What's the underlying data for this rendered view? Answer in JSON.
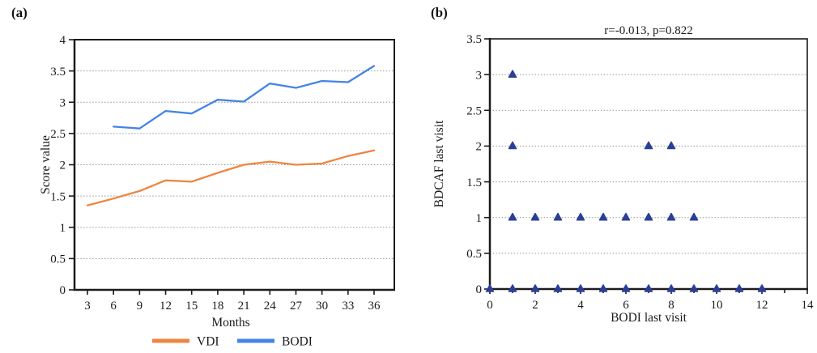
{
  "panels": {
    "a": {
      "tag": "(a)"
    },
    "b": {
      "tag": "(b)"
    }
  },
  "colors": {
    "vdi_orange": "#EE8540",
    "bodi_blue": "#4485E5",
    "scatter_navy": "#2B3F97",
    "axis": "#1b1b1b",
    "grid": "#8f8f8f"
  },
  "chart_data": [
    {
      "type": "line",
      "title": "",
      "xlabel": "Months",
      "ylabel": "Score value",
      "xlim": [
        1.5,
        38.3
      ],
      "ylim": [
        0,
        4
      ],
      "y_tick_step": 0.5,
      "x_ticks": [
        3,
        6,
        9,
        12,
        15,
        18,
        21,
        24,
        27,
        30,
        33,
        36
      ],
      "grid": "horizontal-dotted",
      "legend_position": "bottom",
      "series": [
        {
          "name": "VDI",
          "color": "#EE8540",
          "x": [
            3,
            6,
            9,
            12,
            15,
            18,
            21,
            24,
            27,
            30,
            33,
            36
          ],
          "values": [
            1.35,
            1.46,
            1.58,
            1.75,
            1.73,
            1.87,
            2.0,
            2.05,
            2.0,
            2.02,
            2.14,
            2.23
          ]
        },
        {
          "name": "BODI",
          "color": "#4485E5",
          "x": [
            6,
            9,
            12,
            15,
            18,
            21,
            24,
            27,
            30,
            33,
            36
          ],
          "values": [
            2.61,
            2.58,
            2.86,
            2.82,
            3.04,
            3.01,
            3.3,
            3.23,
            3.34,
            3.32,
            3.58
          ]
        }
      ]
    },
    {
      "type": "scatter",
      "title": "r=-0.013, p=0.822",
      "xlabel": "BODI last visit",
      "ylabel": "BDCAF last visit",
      "xlim": [
        0,
        14
      ],
      "ylim": [
        0,
        3.5
      ],
      "x_label_ticks": [
        0,
        2,
        4,
        6,
        8,
        10,
        12,
        14
      ],
      "x_minor_tick_step": 1,
      "y_tick_step": 0.5,
      "grid": "horizontal-dotted",
      "marker": "triangle-up",
      "marker_color": "#2B3F97",
      "points": [
        [
          0,
          0
        ],
        [
          1,
          0
        ],
        [
          2,
          0
        ],
        [
          3,
          0
        ],
        [
          4,
          0
        ],
        [
          5,
          0
        ],
        [
          6,
          0
        ],
        [
          7,
          0
        ],
        [
          8,
          0
        ],
        [
          9,
          0
        ],
        [
          10,
          0
        ],
        [
          11,
          0
        ],
        [
          12,
          0
        ],
        [
          1,
          1
        ],
        [
          2,
          1
        ],
        [
          3,
          1
        ],
        [
          4,
          1
        ],
        [
          5,
          1
        ],
        [
          6,
          1
        ],
        [
          7,
          1
        ],
        [
          8,
          1
        ],
        [
          9,
          1
        ],
        [
          1,
          2
        ],
        [
          7,
          2
        ],
        [
          8,
          2
        ],
        [
          1,
          3
        ]
      ]
    }
  ]
}
